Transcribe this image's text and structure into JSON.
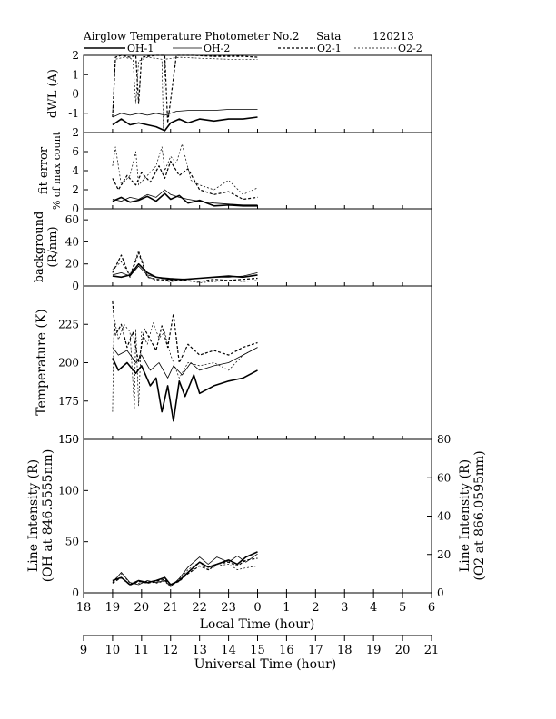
{
  "header": {
    "title": "Airglow Temperature Photometer No.2",
    "site": "Sata",
    "date": "120213"
  },
  "legend": [
    {
      "label": "OH-1",
      "style": "solid-thick"
    },
    {
      "label": "OH-2",
      "style": "solid-thin"
    },
    {
      "label": "O2-1",
      "style": "dash-thick"
    },
    {
      "label": "O2-2",
      "style": "dash-thin"
    }
  ],
  "axes": {
    "local_time_label": "Local Time (hour)",
    "local_time_ticks": [
      "18",
      "19",
      "20",
      "21",
      "22",
      "23",
      "0",
      "1",
      "2",
      "3",
      "4",
      "5",
      "6"
    ],
    "universal_time_label": "Universal Time (hour)",
    "universal_time_ticks": [
      "9",
      "10",
      "11",
      "12",
      "13",
      "14",
      "15",
      "16",
      "17",
      "18",
      "19",
      "20",
      "21"
    ]
  },
  "chart_data": [
    {
      "type": "line",
      "id": "dwl",
      "ylabel": [
        "dWL (A)"
      ],
      "ylim": [
        -2,
        2
      ],
      "yticks": [
        "2",
        "1",
        "0",
        "-1",
        "-2"
      ],
      "series": [
        {
          "name": "OH-1",
          "x": [
            10.0,
            10.3,
            10.6,
            10.9,
            11.2,
            11.5,
            11.8,
            12.0,
            12.3,
            12.6,
            13.0,
            13.5,
            14.0,
            14.5,
            15.0
          ],
          "y": [
            -1.6,
            -1.3,
            -1.6,
            -1.5,
            -1.6,
            -1.7,
            -1.9,
            -1.5,
            -1.3,
            -1.5,
            -1.3,
            -1.4,
            -1.3,
            -1.3,
            -1.2
          ]
        },
        {
          "name": "OH-2",
          "x": [
            10.0,
            10.3,
            10.6,
            10.9,
            11.2,
            11.5,
            11.8,
            12.2,
            12.6,
            13.0,
            13.5,
            14.0,
            14.5,
            15.0
          ],
          "y": [
            -1.2,
            -1.0,
            -1.1,
            -1.0,
            -1.1,
            -1.0,
            -1.1,
            -0.9,
            -0.85,
            -0.85,
            -0.85,
            -0.8,
            -0.8,
            -0.8
          ]
        },
        {
          "name": "O2-1",
          "x": [
            10.0,
            10.1,
            10.3,
            10.6,
            10.8,
            10.9,
            11.0,
            11.5,
            11.8,
            11.9,
            12.2,
            12.8,
            13.5,
            14.5,
            15.0
          ],
          "y": [
            -1.2,
            1.9,
            2.0,
            1.9,
            2.0,
            -0.5,
            1.9,
            2.0,
            2.0,
            -1.5,
            2.0,
            2.0,
            1.95,
            1.95,
            1.9
          ]
        },
        {
          "name": "O2-2",
          "x": [
            10.0,
            10.1,
            10.4,
            10.7,
            10.8,
            10.9,
            11.2,
            11.7,
            11.75,
            11.8,
            12.3,
            13.0,
            14.0,
            15.0
          ],
          "y": [
            -1.0,
            1.8,
            1.9,
            1.8,
            -0.5,
            1.7,
            1.9,
            1.8,
            -1.8,
            1.8,
            1.9,
            1.85,
            1.8,
            1.8
          ]
        }
      ]
    },
    {
      "type": "line",
      "id": "fit_error",
      "ylabel": [
        "fit error",
        "% of max count"
      ],
      "ylim": [
        0,
        8
      ],
      "yticks": [
        "6",
        "4",
        "2",
        "0"
      ],
      "series": [
        {
          "name": "OH-1",
          "x": [
            10.0,
            10.3,
            10.6,
            10.9,
            11.2,
            11.5,
            11.8,
            12.0,
            12.3,
            12.6,
            13.0,
            13.5,
            14.0,
            14.5,
            15.0
          ],
          "y": [
            0.8,
            1.2,
            0.7,
            0.9,
            1.3,
            0.8,
            1.6,
            1.0,
            1.4,
            0.6,
            0.9,
            0.3,
            0.4,
            0.3,
            0.3
          ]
        },
        {
          "name": "OH-2",
          "x": [
            10.0,
            10.3,
            10.6,
            10.9,
            11.2,
            11.5,
            11.8,
            12.0,
            12.3,
            12.6,
            13.0,
            13.5,
            14.0,
            14.5,
            15.0
          ],
          "y": [
            1.0,
            0.8,
            1.2,
            1.0,
            1.5,
            1.2,
            2.0,
            1.5,
            1.2,
            1.0,
            0.8,
            0.6,
            0.5,
            0.4,
            0.4
          ]
        },
        {
          "name": "O2-1",
          "x": [
            10.0,
            10.2,
            10.5,
            10.8,
            11.0,
            11.3,
            11.6,
            11.8,
            12.0,
            12.3,
            12.6,
            13.0,
            13.5,
            14.0,
            14.5,
            15.0
          ],
          "y": [
            3.2,
            2.0,
            3.5,
            2.5,
            3.8,
            2.8,
            4.5,
            3.2,
            5.0,
            3.5,
            4.2,
            2.0,
            1.5,
            1.8,
            1.0,
            1.2
          ]
        },
        {
          "name": "O2-2",
          "x": [
            10.0,
            10.1,
            10.3,
            10.6,
            10.8,
            10.9,
            11.2,
            11.5,
            11.7,
            11.8,
            12.0,
            12.2,
            12.4,
            12.7,
            13.0,
            13.5,
            14.0,
            14.5,
            15.0
          ],
          "y": [
            4.5,
            6.5,
            2.5,
            3.5,
            6.0,
            2.5,
            3.5,
            4.5,
            6.5,
            4.0,
            5.5,
            4.8,
            6.8,
            3.0,
            2.5,
            2.0,
            3.0,
            1.5,
            2.2
          ]
        }
      ]
    },
    {
      "type": "line",
      "id": "background",
      "ylabel": [
        "background",
        "(R/nm)"
      ],
      "ylim": [
        0,
        70
      ],
      "yticks": [
        "60",
        "40",
        "20",
        "0"
      ],
      "series": [
        {
          "name": "OH-1",
          "x": [
            10.0,
            10.3,
            10.6,
            10.9,
            11.2,
            11.5,
            12.0,
            12.5,
            13.0,
            13.5,
            14.0,
            14.5,
            15.0
          ],
          "y": [
            9,
            8,
            10,
            20,
            12,
            8,
            6,
            6,
            7,
            8,
            9,
            8,
            10
          ]
        },
        {
          "name": "OH-2",
          "x": [
            10.0,
            10.3,
            10.6,
            10.9,
            11.2,
            11.5,
            12.0,
            12.5,
            13.0,
            13.5,
            14.0,
            14.5,
            15.0
          ],
          "y": [
            10,
            12,
            9,
            18,
            10,
            8,
            7,
            6,
            7,
            8,
            8,
            9,
            12
          ]
        },
        {
          "name": "O2-1",
          "x": [
            10.0,
            10.3,
            10.6,
            10.9,
            11.2,
            11.5,
            12.0,
            12.5,
            13.0,
            13.5,
            14.0,
            14.5,
            15.0
          ],
          "y": [
            12,
            28,
            8,
            30,
            8,
            6,
            5,
            5,
            4,
            6,
            5,
            6,
            7
          ]
        },
        {
          "name": "O2-2",
          "x": [
            10.0,
            10.3,
            10.6,
            10.9,
            11.2,
            11.5,
            12.0,
            12.5,
            13.0,
            13.5,
            14.0,
            14.5,
            15.0
          ],
          "y": [
            15,
            22,
            10,
            32,
            9,
            5,
            4,
            5,
            3,
            4,
            5,
            4,
            5
          ]
        }
      ]
    },
    {
      "type": "line",
      "id": "temperature",
      "ylabel": [
        "Temperature (K)"
      ],
      "ylim": [
        150,
        250
      ],
      "yticks": [
        "225",
        "200",
        "175",
        "150"
      ],
      "series": [
        {
          "name": "OH-1",
          "x": [
            10.0,
            10.2,
            10.5,
            10.8,
            11.0,
            11.3,
            11.5,
            11.7,
            11.9,
            12.1,
            12.3,
            12.5,
            12.8,
            13.0,
            13.5,
            14.0,
            14.5,
            15.0
          ],
          "y": [
            203,
            195,
            200,
            193,
            198,
            185,
            190,
            168,
            185,
            162,
            188,
            178,
            192,
            180,
            185,
            188,
            190,
            195
          ]
        },
        {
          "name": "OH-2",
          "x": [
            10.0,
            10.2,
            10.5,
            10.8,
            11.0,
            11.3,
            11.6,
            11.9,
            12.1,
            12.4,
            12.7,
            13.0,
            13.5,
            14.0,
            14.5,
            15.0
          ],
          "y": [
            210,
            205,
            208,
            200,
            205,
            195,
            200,
            190,
            198,
            192,
            200,
            195,
            198,
            200,
            205,
            210
          ]
        },
        {
          "name": "O2-1",
          "x": [
            10.0,
            10.1,
            10.3,
            10.5,
            10.7,
            10.9,
            11.1,
            11.3,
            11.5,
            11.7,
            11.9,
            12.1,
            12.3,
            12.6,
            13.0,
            13.5,
            14.0,
            14.5,
            15.0
          ],
          "y": [
            240,
            218,
            225,
            210,
            220,
            200,
            222,
            215,
            208,
            224,
            210,
            232,
            200,
            212,
            205,
            208,
            205,
            210,
            213
          ]
        },
        {
          "name": "O2-2",
          "x": [
            10.0,
            10.05,
            10.2,
            10.4,
            10.6,
            10.75,
            10.8,
            10.9,
            11.0,
            11.2,
            11.4,
            11.6,
            11.8,
            12.0,
            12.3,
            12.6,
            13.0,
            13.5,
            14.0,
            14.5,
            15.0
          ],
          "y": [
            168,
            230,
            215,
            225,
            220,
            170,
            222,
            172,
            220,
            212,
            226,
            216,
            220,
            205,
            190,
            200,
            198,
            200,
            195,
            205,
            210
          ]
        }
      ]
    },
    {
      "type": "line",
      "id": "intensity",
      "ylabel": [
        "Line Intensity (R)",
        "(OH at 846.5555nm)"
      ],
      "ylabel_right": [
        "Line Intensity (R)",
        "(O2 at 866.0595nm)"
      ],
      "ylim": [
        0,
        150
      ],
      "ylim_right": [
        0,
        80
      ],
      "yticks": [
        "150",
        "100",
        "50",
        "0"
      ],
      "yticks_right": [
        "80",
        "60",
        "40",
        "20",
        "0"
      ],
      "series": [
        {
          "name": "OH-1",
          "x": [
            10.0,
            10.3,
            10.6,
            10.9,
            11.2,
            11.5,
            11.8,
            12.0,
            12.3,
            12.6,
            13.0,
            13.3,
            13.6,
            14.0,
            14.3,
            14.6,
            15.0
          ],
          "y": [
            12,
            15,
            8,
            12,
            10,
            12,
            15,
            8,
            12,
            20,
            30,
            25,
            28,
            32,
            28,
            35,
            40
          ]
        },
        {
          "name": "OH-2",
          "x": [
            10.0,
            10.3,
            10.6,
            10.9,
            11.2,
            11.5,
            11.8,
            12.0,
            12.3,
            12.6,
            13.0,
            13.3,
            13.6,
            14.0,
            14.3,
            14.6,
            15.0
          ],
          "y": [
            10,
            20,
            10,
            8,
            12,
            10,
            12,
            6,
            14,
            25,
            35,
            28,
            35,
            30,
            36,
            30,
            38
          ]
        },
        {
          "name": "O2-1",
          "x": [
            10.0,
            10.3,
            10.6,
            10.9,
            11.2,
            11.5,
            11.8,
            12.0,
            12.3,
            12.6,
            13.0,
            13.3,
            13.6,
            14.0,
            14.3,
            14.6,
            15.0
          ],
          "y": [
            5,
            8,
            4,
            6,
            5,
            6,
            7,
            4,
            6,
            10,
            14,
            12,
            15,
            16,
            14,
            17,
            18
          ]
        },
        {
          "name": "O2-2",
          "x": [
            10.0,
            10.3,
            10.6,
            10.9,
            11.2,
            11.5,
            11.8,
            12.0,
            12.3,
            12.6,
            13.0,
            13.3,
            13.6,
            14.0,
            14.3,
            14.6,
            15.0
          ],
          "y": [
            6,
            10,
            5,
            5,
            6,
            5,
            6,
            3,
            7,
            12,
            16,
            12,
            14,
            15,
            12,
            13,
            14
          ]
        }
      ]
    }
  ]
}
